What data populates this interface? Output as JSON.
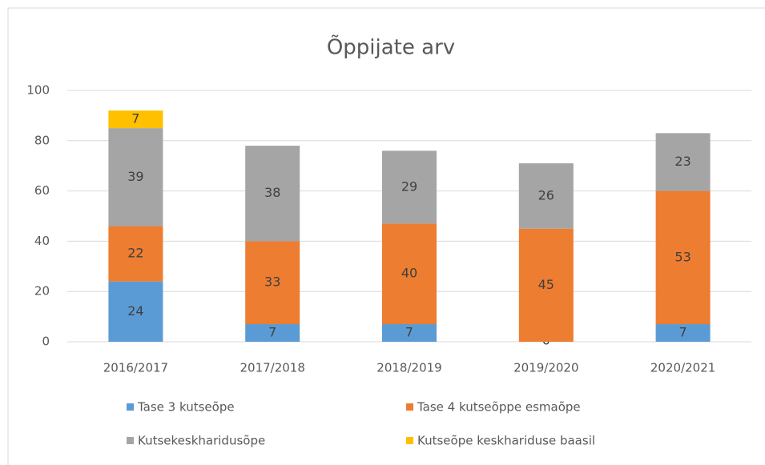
{
  "chart_data": {
    "type": "stacked_bar",
    "title": "Õppijate arv",
    "categories": [
      "2016/2017",
      "2017/2018",
      "2018/2019",
      "2019/2020",
      "2020/2021"
    ],
    "series": [
      {
        "name": "Tase 3 kutseõpe",
        "color": "#5b9bd5",
        "values": [
          24,
          7,
          7,
          0,
          7
        ]
      },
      {
        "name": "Tase 4 kutseõppe esmaõpe",
        "color": "#ed7d31",
        "values": [
          22,
          33,
          40,
          45,
          53
        ]
      },
      {
        "name": "Kutsekeskharidusõpe",
        "color": "#a5a5a5",
        "values": [
          39,
          38,
          29,
          26,
          23
        ]
      },
      {
        "name": "Kutseõpe keskhariduse baasil",
        "color": "#ffc000",
        "values": [
          7,
          null,
          null,
          null,
          null
        ]
      }
    ],
    "ylim": [
      0,
      100
    ],
    "yticks": [
      0,
      20,
      40,
      60,
      80,
      100
    ],
    "grid": true
  }
}
